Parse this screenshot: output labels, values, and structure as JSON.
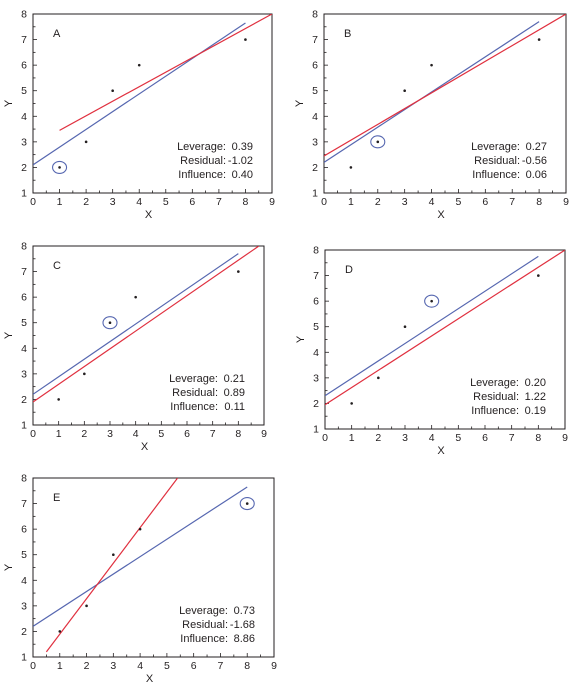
{
  "chart_data": [
    {
      "type": "scatter",
      "panel_label": "A",
      "xlabel": "X",
      "ylabel": "Y",
      "xlim": [
        0,
        9
      ],
      "ylim": [
        1,
        8
      ],
      "xticks": [
        "0",
        "1",
        "2",
        "3",
        "4",
        "5",
        "6",
        "7",
        "8",
        "9"
      ],
      "yticks": [
        "1",
        "2",
        "3",
        "4",
        "5",
        "6",
        "7",
        "8"
      ],
      "points": [
        [
          1,
          2
        ],
        [
          2,
          3
        ],
        [
          3,
          5
        ],
        [
          4,
          6
        ],
        [
          8,
          7
        ]
      ],
      "highlight": [
        1,
        2
      ],
      "lines": [
        {
          "color": "#5667b0",
          "x": [
            0,
            8
          ],
          "y": [
            2.1,
            7.65
          ]
        },
        {
          "color": "#e0303f",
          "x": [
            1,
            9
          ],
          "y": [
            3.45,
            8.0
          ]
        }
      ],
      "stats": [
        {
          "label": "Leverage:",
          "value": "0.39"
        },
        {
          "label": "Residual:",
          "value": "-1.02"
        },
        {
          "label": "Influence:",
          "value": "0.40"
        }
      ]
    },
    {
      "type": "scatter",
      "panel_label": "B",
      "xlabel": "X",
      "ylabel": "Y",
      "xlim": [
        0,
        9
      ],
      "ylim": [
        1,
        8
      ],
      "xticks": [
        "0",
        "1",
        "2",
        "3",
        "4",
        "5",
        "6",
        "7",
        "8",
        "9"
      ],
      "yticks": [
        "1",
        "2",
        "3",
        "4",
        "5",
        "6",
        "7",
        "8"
      ],
      "points": [
        [
          1,
          2
        ],
        [
          2,
          3
        ],
        [
          3,
          5
        ],
        [
          4,
          6
        ],
        [
          8,
          7
        ]
      ],
      "highlight": [
        2,
        3
      ],
      "lines": [
        {
          "color": "#5667b0",
          "x": [
            0,
            8
          ],
          "y": [
            2.2,
            7.7
          ]
        },
        {
          "color": "#e0303f",
          "x": [
            0,
            9
          ],
          "y": [
            2.45,
            8.0
          ]
        }
      ],
      "stats": [
        {
          "label": "Leverage:",
          "value": "0.27"
        },
        {
          "label": "Residual:",
          "value": "-0.56"
        },
        {
          "label": "Influence:",
          "value": "0.06"
        }
      ]
    },
    {
      "type": "scatter",
      "panel_label": "C",
      "xlabel": "X",
      "ylabel": "Y",
      "xlim": [
        0,
        9
      ],
      "ylim": [
        1,
        8
      ],
      "xticks": [
        "0",
        "1",
        "2",
        "3",
        "4",
        "5",
        "6",
        "7",
        "8",
        "9"
      ],
      "yticks": [
        "1",
        "2",
        "3",
        "4",
        "5",
        "6",
        "7",
        "8"
      ],
      "points": [
        [
          1,
          2
        ],
        [
          2,
          3
        ],
        [
          3,
          5
        ],
        [
          4,
          6
        ],
        [
          8,
          7
        ]
      ],
      "highlight": [
        3,
        5
      ],
      "lines": [
        {
          "color": "#5667b0",
          "x": [
            0,
            8
          ],
          "y": [
            2.2,
            7.7
          ]
        },
        {
          "color": "#e0303f",
          "x": [
            0,
            8.8
          ],
          "y": [
            1.9,
            8.0
          ]
        }
      ],
      "stats": [
        {
          "label": "Leverage:",
          "value": "0.21"
        },
        {
          "label": "Residual:",
          "value": "0.89"
        },
        {
          "label": "Influence:",
          "value": "0.11"
        }
      ]
    },
    {
      "type": "scatter",
      "panel_label": "D",
      "xlabel": "X",
      "ylabel": "Y",
      "xlim": [
        0,
        9
      ],
      "ylim": [
        1,
        8
      ],
      "xticks": [
        "0",
        "1",
        "2",
        "3",
        "4",
        "5",
        "6",
        "7",
        "8",
        "9"
      ],
      "yticks": [
        "1",
        "2",
        "3",
        "4",
        "5",
        "6",
        "7",
        "8"
      ],
      "points": [
        [
          1,
          2
        ],
        [
          2,
          3
        ],
        [
          3,
          5
        ],
        [
          4,
          6
        ],
        [
          8,
          7
        ]
      ],
      "highlight": [
        4,
        6
      ],
      "lines": [
        {
          "color": "#5667b0",
          "x": [
            0,
            8
          ],
          "y": [
            2.3,
            7.75
          ]
        },
        {
          "color": "#e0303f",
          "x": [
            0,
            9
          ],
          "y": [
            1.95,
            8.0
          ]
        }
      ],
      "stats": [
        {
          "label": "Leverage:",
          "value": "0.20"
        },
        {
          "label": "Residual:",
          "value": "1.22"
        },
        {
          "label": "Influence:",
          "value": "0.19"
        }
      ]
    },
    {
      "type": "scatter",
      "panel_label": "E",
      "xlabel": "X",
      "ylabel": "Y",
      "xlim": [
        0,
        9
      ],
      "ylim": [
        1,
        8
      ],
      "xticks": [
        "0",
        "1",
        "2",
        "3",
        "4",
        "5",
        "6",
        "7",
        "8",
        "9"
      ],
      "yticks": [
        "1",
        "2",
        "3",
        "4",
        "5",
        "6",
        "7",
        "8"
      ],
      "points": [
        [
          1,
          2
        ],
        [
          2,
          3
        ],
        [
          3,
          5
        ],
        [
          4,
          6
        ],
        [
          8,
          7
        ]
      ],
      "highlight": [
        8,
        7
      ],
      "lines": [
        {
          "color": "#5667b0",
          "x": [
            0,
            8
          ],
          "y": [
            2.2,
            7.65
          ]
        },
        {
          "color": "#e0303f",
          "x": [
            0.5,
            5.4
          ],
          "y": [
            1.2,
            8.0
          ]
        }
      ],
      "stats": [
        {
          "label": "Leverage:",
          "value": "0.73"
        },
        {
          "label": "Residual:",
          "value": "-1.68"
        },
        {
          "label": "Influence:",
          "value": "8.86"
        }
      ]
    }
  ]
}
